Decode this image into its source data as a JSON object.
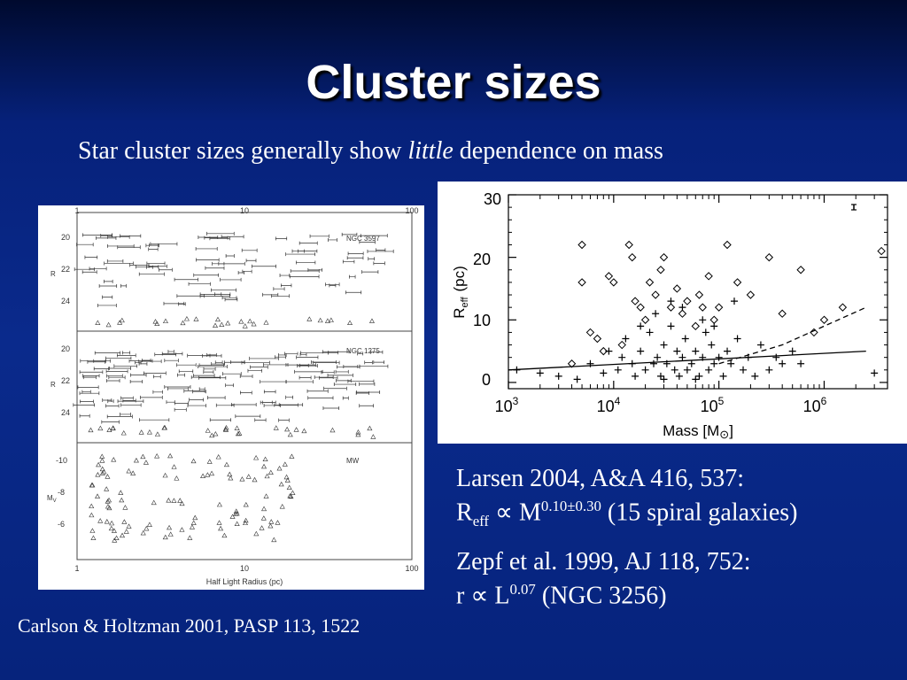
{
  "slide": {
    "title": "Cluster sizes",
    "subtitle_before": "Star cluster sizes generally show ",
    "subtitle_italic": "little",
    "subtitle_after": " dependence on mass"
  },
  "left_figure": {
    "top_axis_ticks": [
      "1",
      "10",
      "100"
    ],
    "bottom_axis_ticks": [
      "1",
      "10",
      "100"
    ],
    "x_axis_label": "Half Light Radius (pc)",
    "panels": [
      {
        "name": "NGC 3597",
        "y_label": "R",
        "y_ticks": [
          "20",
          "22",
          "24"
        ]
      },
      {
        "name": "NGC 1275",
        "y_label": "R",
        "y_ticks": [
          "20",
          "22",
          "24"
        ]
      },
      {
        "name": "MW",
        "y_label": "M",
        "y_label_sub": "V",
        "y_ticks": [
          "-10",
          "-8",
          "-6"
        ]
      }
    ],
    "caption": "Carlson & Holtzman 2001, PASP 113, 1522"
  },
  "right_figure": {
    "x_ticks": [
      {
        "base": "10",
        "exp": "3"
      },
      {
        "base": "10",
        "exp": "4"
      },
      {
        "base": "10",
        "exp": "5"
      },
      {
        "base": "10",
        "exp": "6"
      }
    ],
    "y_ticks": [
      "0",
      "10",
      "20",
      "30"
    ],
    "x_label": "Mass [M",
    "x_label_symbol": "⊙",
    "x_label_end": "]",
    "y_label": "R",
    "y_label_sub": "eff",
    "y_label_unit": "(pc)"
  },
  "chart_data": {
    "type": "scatter",
    "x_scale": "log",
    "xlim": [
      1000,
      4000000
    ],
    "ylim": [
      -1,
      30
    ],
    "series": [
      {
        "marker": "plus",
        "points": [
          [
            1200,
            2
          ],
          [
            2000,
            1.5
          ],
          [
            3000,
            1
          ],
          [
            4500,
            0.5
          ],
          [
            6000,
            3
          ],
          [
            8000,
            1.5
          ],
          [
            9000,
            5
          ],
          [
            11000,
            2
          ],
          [
            12000,
            4
          ],
          [
            13000,
            7
          ],
          [
            15000,
            3
          ],
          [
            16000,
            1
          ],
          [
            18000,
            5
          ],
          [
            20000,
            2
          ],
          [
            22000,
            8
          ],
          [
            24000,
            3
          ],
          [
            26000,
            4
          ],
          [
            28000,
            1
          ],
          [
            30000,
            6
          ],
          [
            32000,
            3
          ],
          [
            35000,
            9
          ],
          [
            38000,
            2
          ],
          [
            40000,
            5
          ],
          [
            42000,
            1
          ],
          [
            45000,
            4
          ],
          [
            48000,
            7
          ],
          [
            50000,
            2
          ],
          [
            55000,
            3
          ],
          [
            60000,
            5
          ],
          [
            65000,
            1
          ],
          [
            70000,
            4
          ],
          [
            75000,
            8
          ],
          [
            80000,
            2
          ],
          [
            85000,
            6
          ],
          [
            90000,
            3
          ],
          [
            100000,
            4
          ],
          [
            110000,
            1
          ],
          [
            120000,
            5
          ],
          [
            130000,
            3
          ],
          [
            150000,
            7
          ],
          [
            170000,
            2
          ],
          [
            190000,
            4
          ],
          [
            220000,
            1
          ],
          [
            250000,
            6
          ],
          [
            300000,
            2
          ],
          [
            350000,
            4
          ],
          [
            400000,
            3
          ],
          [
            500000,
            5
          ],
          [
            600000,
            3
          ],
          [
            25000,
            11
          ],
          [
            45000,
            12
          ],
          [
            70000,
            10
          ],
          [
            140000,
            13
          ],
          [
            30000,
            0.5
          ],
          [
            60000,
            0.5
          ],
          [
            3000000,
            1.5
          ],
          [
            18000,
            9
          ],
          [
            35000,
            13
          ],
          [
            90000,
            9
          ]
        ]
      },
      {
        "marker": "diamond",
        "points": [
          [
            5000,
            22
          ],
          [
            5000,
            16
          ],
          [
            6000,
            8
          ],
          [
            7000,
            7
          ],
          [
            8000,
            5
          ],
          [
            9000,
            17
          ],
          [
            10000,
            16
          ],
          [
            14000,
            22
          ],
          [
            15000,
            20
          ],
          [
            16000,
            13
          ],
          [
            18000,
            12
          ],
          [
            20000,
            10
          ],
          [
            22000,
            16
          ],
          [
            25000,
            14
          ],
          [
            28000,
            18
          ],
          [
            30000,
            20
          ],
          [
            35000,
            12
          ],
          [
            40000,
            15
          ],
          [
            45000,
            11
          ],
          [
            50000,
            13
          ],
          [
            60000,
            9
          ],
          [
            70000,
            12
          ],
          [
            80000,
            17
          ],
          [
            90000,
            10
          ],
          [
            100000,
            12
          ],
          [
            120000,
            22
          ],
          [
            150000,
            16
          ],
          [
            200000,
            14
          ],
          [
            300000,
            20
          ],
          [
            400000,
            11
          ],
          [
            600000,
            18
          ],
          [
            800000,
            8
          ],
          [
            1000000,
            10
          ],
          [
            1500000,
            12
          ],
          [
            3500000,
            21
          ],
          [
            4000,
            3
          ],
          [
            12000,
            6
          ],
          [
            65000,
            14
          ]
        ]
      }
    ],
    "lines": [
      {
        "style": "solid",
        "points": [
          [
            1000,
            2
          ],
          [
            2500000,
            5
          ]
        ]
      },
      {
        "style": "dashed",
        "points": [
          [
            100000,
            3
          ],
          [
            400000,
            6
          ],
          [
            1000000,
            9
          ],
          [
            2500000,
            12
          ]
        ]
      }
    ]
  },
  "text_blocks": {
    "larsen_line1": "Larsen 2004, A&A 416, 537:",
    "larsen_r": "R",
    "larsen_r_sub": "eff",
    "larsen_prop": " ∝ M",
    "larsen_exp": "0.10±0.30",
    "larsen_rest": " (15 spiral galaxies)",
    "zepf_line1": "Zepf et al. 1999,  AJ 118, 752:",
    "zepf_prefix": "r ∝ L",
    "zepf_exp": "0.07",
    "zepf_rest": "  (NGC 3256)"
  }
}
